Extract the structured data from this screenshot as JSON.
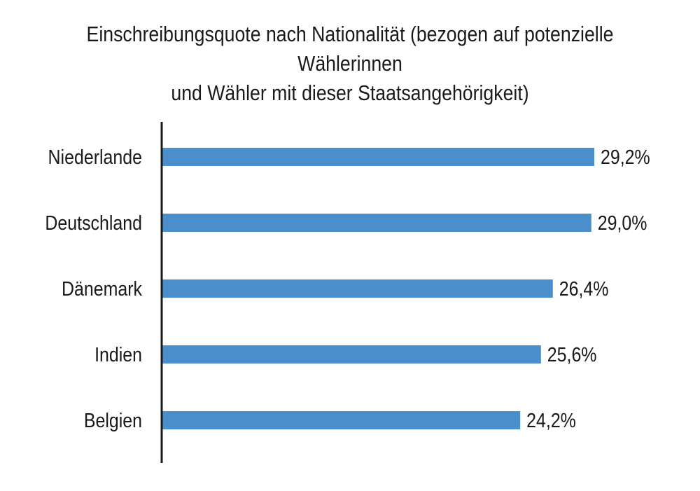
{
  "chart_data": {
    "type": "bar",
    "orientation": "horizontal",
    "title": "Einschreibungsquote nach Nationalität (bezogen auf potenzielle Wählerinnen und Wähler mit dieser Staatsangehörigkeit)",
    "title_lines": [
      "Einschreibungsquote nach Nationalität (bezogen auf potenzielle Wählerinnen",
      "und Wähler mit dieser Staatsangehörigkeit)"
    ],
    "categories": [
      "Niederlande",
      "Deutschland",
      "Dänemark",
      "Indien",
      "Belgien"
    ],
    "values": [
      29.2,
      29.0,
      26.4,
      25.6,
      24.2
    ],
    "value_labels": [
      "29,2%",
      "29,0%",
      "26,4%",
      "25,6%",
      "24,2%"
    ],
    "unit": "%",
    "xlim": [
      0,
      30
    ],
    "grid": false,
    "legend": "none",
    "bar_color": "#4a8fcb",
    "axis_color": "#1a1a1a"
  }
}
